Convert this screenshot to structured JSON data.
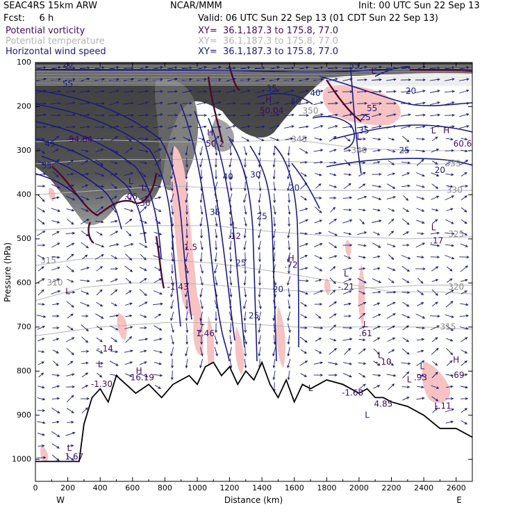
{
  "header": {
    "model": "SEAC4RS 15km ARW",
    "center": "NCAR/MMM",
    "init": "Init: 00 UTC Sun 22 Sep 13",
    "fcst": "Fcst:     6 h",
    "valid": "Valid: 06 UTC Sun 22 Sep 13 (01 CDT Sun 22 Sep 13)",
    "fields": [
      {
        "name": "Potential vorticity",
        "xy": "XY=  36.1,187.3 to 175.8, 77.0"
      },
      {
        "name": "Potential temperature",
        "xy": "XY=  36.1,187.3 to 175.8, 77.0"
      },
      {
        "name": "Horizontal wind speed",
        "xy": "XY=  36.1,187.3 to 175.8, 77.0"
      }
    ]
  },
  "colors": {
    "pv_dark": "#4a4a4a",
    "pv_light": "#f6c2c2",
    "theta": "#b4b4b4",
    "wind": "#1a1a80",
    "terrain_fill": "#ffffff",
    "pv_contour": "#4d0a2a"
  },
  "chart_data": {
    "type": "cross-section",
    "xlabel": "Distance (km)",
    "ylabel": "Pressure (hPa)",
    "xlim": [
      0,
      2700
    ],
    "ylim": [
      1050,
      100
    ],
    "x_ticks": [
      0,
      200,
      400,
      600,
      800,
      1000,
      1200,
      1400,
      1600,
      1800,
      2000,
      2200,
      2400,
      2600
    ],
    "y_ticks": [
      100,
      200,
      300,
      400,
      500,
      600,
      700,
      800,
      900,
      1000
    ],
    "x_end_labels": {
      "left": "W",
      "right": "E"
    },
    "terrain": {
      "x": [
        0,
        100,
        270,
        300,
        350,
        400,
        450,
        500,
        560,
        620,
        700,
        780,
        850,
        900,
        950,
        1000,
        1050,
        1100,
        1150,
        1200,
        1250,
        1300,
        1350,
        1400,
        1450,
        1500,
        1550,
        1600,
        1650,
        1700,
        1800,
        1900,
        2000,
        2050,
        2100,
        2150,
        2200,
        2300,
        2400,
        2500,
        2600,
        2700
      ],
      "p": [
        1005,
        1005,
        1005,
        920,
        860,
        840,
        870,
        810,
        830,
        850,
        830,
        860,
        830,
        820,
        810,
        830,
        790,
        780,
        810,
        790,
        830,
        800,
        820,
        780,
        830,
        860,
        820,
        870,
        830,
        840,
        820,
        830,
        850,
        840,
        860,
        860,
        870,
        880,
        900,
        930,
        930,
        950
      ]
    },
    "theta_labels": [
      {
        "text": "310",
        "x": 120,
        "p": 600
      },
      {
        "text": "315",
        "x": 80,
        "p": 550
      },
      {
        "text": "315",
        "x": 2550,
        "p": 700
      },
      {
        "text": "320",
        "x": 2600,
        "p": 610
      },
      {
        "text": "325",
        "x": 2600,
        "p": 490
      },
      {
        "text": "330",
        "x": 2590,
        "p": 390
      },
      {
        "text": "335",
        "x": 2580,
        "p": 330
      },
      {
        "text": "340",
        "x": 2000,
        "p": 300
      },
      {
        "text": "345",
        "x": 1630,
        "p": 275
      },
      {
        "text": "350",
        "x": 1700,
        "p": 210
      }
    ],
    "wind_labels": [
      {
        "text": "20",
        "x": 200,
        "p": 105
      },
      {
        "text": "55",
        "x": 1970,
        "p": 108
      },
      {
        "text": "40",
        "x": 1730,
        "p": 170
      },
      {
        "text": "55",
        "x": 2080,
        "p": 205
      },
      {
        "text": "50",
        "x": 1610,
        "p": 190
      },
      {
        "text": "35",
        "x": 1460,
        "p": 160
      },
      {
        "text": "35",
        "x": 2030,
        "p": 255
      },
      {
        "text": "25",
        "x": 2040,
        "p": 225
      },
      {
        "text": "25",
        "x": 2280,
        "p": 300
      },
      {
        "text": "20",
        "x": 2500,
        "p": 345
      },
      {
        "text": "20",
        "x": 2320,
        "p": 165
      },
      {
        "text": "20",
        "x": 1600,
        "p": 385
      },
      {
        "text": "25",
        "x": 1400,
        "p": 450
      },
      {
        "text": "25",
        "x": 1270,
        "p": 555
      },
      {
        "text": "20",
        "x": 1500,
        "p": 615
      },
      {
        "text": "25",
        "x": 1350,
        "p": 675
      },
      {
        "text": "35",
        "x": 1110,
        "p": 440
      },
      {
        "text": "40",
        "x": 1190,
        "p": 360
      },
      {
        "text": "30",
        "x": 1360,
        "p": 355
      },
      {
        "text": "45",
        "x": 90,
        "p": 285
      },
      {
        "text": "35",
        "x": 70,
        "p": 335
      },
      {
        "text": "55",
        "x": 200,
        "p": 150
      }
    ],
    "hl_markers": [
      {
        "text": "H",
        "x": 1440,
        "p": 185
      },
      {
        "text": "H",
        "x": 1080,
        "p": 260
      },
      {
        "text": "H",
        "x": 2540,
        "p": 255
      },
      {
        "text": "L",
        "x": 2460,
        "p": 255
      },
      {
        "text": "L",
        "x": 2000,
        "p": 270
      },
      {
        "text": "L",
        "x": 2090,
        "p": 120
      },
      {
        "text": "L",
        "x": 590,
        "p": 370
      },
      {
        "text": "L",
        "x": 670,
        "p": 385
      },
      {
        "text": "L",
        "x": 1230,
        "p": 470
      },
      {
        "text": "H",
        "x": 1580,
        "p": 545
      },
      {
        "text": "L",
        "x": 1920,
        "p": 580
      },
      {
        "text": "L",
        "x": 2460,
        "p": 475
      },
      {
        "text": "L",
        "x": 200,
        "p": 620
      },
      {
        "text": "L",
        "x": 1030,
        "p": 690
      },
      {
        "text": "L",
        "x": 2040,
        "p": 695
      },
      {
        "text": "L",
        "x": 2130,
        "p": 765
      },
      {
        "text": "L",
        "x": 400,
        "p": 785
      },
      {
        "text": "H",
        "x": 640,
        "p": 800
      },
      {
        "text": "L",
        "x": 2390,
        "p": 790
      },
      {
        "text": "H",
        "x": 2600,
        "p": 775
      },
      {
        "text": "L",
        "x": 2310,
        "p": 820
      },
      {
        "text": "L",
        "x": 1700,
        "p": 840
      },
      {
        "text": "L",
        "x": 2480,
        "p": 880
      },
      {
        "text": "L",
        "x": 2050,
        "p": 900
      },
      {
        "text": "L",
        "x": 210,
        "p": 975
      }
    ],
    "pv_values": [
      {
        "text": "54.64",
        "x": 280,
        "p": 275
      },
      {
        "text": "50.04",
        "x": 1460,
        "p": 210
      },
      {
        "text": "50.2",
        "x": 1110,
        "p": 285
      },
      {
        "text": "60.6",
        "x": 2640,
        "p": 285
      },
      {
        "text": ".06",
        "x": 590,
        "p": 405
      },
      {
        "text": ".30",
        "x": 670,
        "p": 420
      },
      {
        "text": "1.5",
        "x": 960,
        "p": 520
      },
      {
        "text": ".12",
        "x": 1230,
        "p": 495
      },
      {
        "text": ".72",
        "x": 1580,
        "p": 560
      },
      {
        "text": "-1.43",
        "x": 880,
        "p": 610
      },
      {
        "text": "-.21",
        "x": 1920,
        "p": 610
      },
      {
        "text": ".17",
        "x": 2480,
        "p": 505
      },
      {
        "text": "1.46",
        "x": 1050,
        "p": 715
      },
      {
        "text": ".61",
        "x": 2040,
        "p": 715
      },
      {
        "text": "-.14",
        "x": 430,
        "p": 750
      },
      {
        "text": "16.19",
        "x": 660,
        "p": 815
      },
      {
        "text": "-.10",
        "x": 2150,
        "p": 780
      },
      {
        "text": ".93",
        "x": 2380,
        "p": 815
      },
      {
        "text": ".69",
        "x": 2610,
        "p": 810
      },
      {
        "text": "-1.30",
        "x": 410,
        "p": 830
      },
      {
        "text": "-1.68",
        "x": 1960,
        "p": 850
      },
      {
        "text": "4.85",
        "x": 2150,
        "p": 875
      },
      {
        "text": "-.11",
        "x": 2520,
        "p": 880
      },
      {
        "text": "1.67",
        "x": 240,
        "p": 995
      }
    ]
  }
}
